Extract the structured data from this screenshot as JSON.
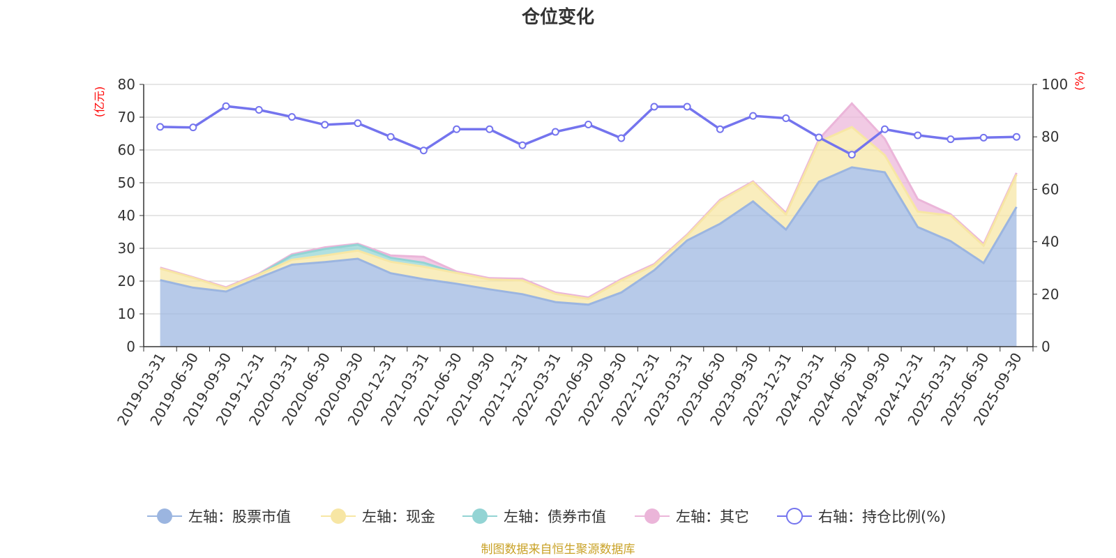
{
  "chart_data": {
    "type": "area",
    "title": "仓位变化",
    "left_unit": "(亿元)",
    "right_unit": "(%)",
    "source": "制图数据来自恒生聚源数据库",
    "categories": [
      "2019-03-31",
      "2019-06-30",
      "2019-09-30",
      "2019-12-31",
      "2020-03-31",
      "2020-06-30",
      "2020-09-30",
      "2020-12-31",
      "2021-03-31",
      "2021-06-30",
      "2021-09-30",
      "2021-12-31",
      "2022-03-31",
      "2022-06-30",
      "2022-09-30",
      "2022-12-31",
      "2023-03-31",
      "2023-06-30",
      "2023-09-30",
      "2023-12-31",
      "2024-03-31",
      "2024-06-30",
      "2024-09-30",
      "2024-12-31",
      "2025-03-31",
      "2025-06-30",
      "2025-09-30"
    ],
    "y_left_ticks": [
      "0",
      "10",
      "20",
      "30",
      "40",
      "50",
      "60",
      "70",
      "80"
    ],
    "y_right_ticks": [
      "0",
      "20",
      "40",
      "60",
      "80",
      "100"
    ],
    "ylim_left": [
      0,
      80
    ],
    "ylim_right": [
      0,
      100
    ],
    "grid": true,
    "legend_position": "bottom",
    "series": [
      {
        "name": "左轴：股票市值",
        "axis": "left",
        "color": "#9bb5e0",
        "stack": true,
        "values": [
          20.3,
          18.0,
          16.8,
          21.0,
          25.0,
          25.8,
          26.8,
          22.4,
          20.6,
          19.2,
          17.5,
          16.0,
          13.6,
          12.8,
          16.5,
          23.3,
          32.4,
          37.5,
          44.3,
          35.7,
          50.3,
          54.7,
          53.2,
          36.5,
          32.2,
          25.5,
          42.6
        ]
      },
      {
        "name": "左轴：现金",
        "axis": "left",
        "color": "#f7e6a4",
        "stack": true,
        "values": [
          3.5,
          3.0,
          1.0,
          1.0,
          1.5,
          2.0,
          2.5,
          3.5,
          3.8,
          3.3,
          3.0,
          4.2,
          2.5,
          1.8,
          3.7,
          1.5,
          1.5,
          6.9,
          5.8,
          4.6,
          12.2,
          12.3,
          5.2,
          4.7,
          7.8,
          5.3,
          9.9
        ]
      },
      {
        "name": "左轴：债券市值",
        "axis": "left",
        "color": "#93d4d4",
        "stack": true,
        "values": [
          0,
          0,
          0,
          0,
          1.3,
          2.0,
          1.8,
          1.2,
          1.2,
          0,
          0,
          0,
          0,
          0,
          0,
          0,
          0,
          0,
          0,
          0,
          0,
          0,
          0,
          0,
          0,
          0,
          0
        ]
      },
      {
        "name": "左轴：其它",
        "axis": "left",
        "color": "#ebb5d9",
        "stack": true,
        "values": [
          0.3,
          0.2,
          0.3,
          0.3,
          0.4,
          0.5,
          0.3,
          0.7,
          1.8,
          0.4,
          0.4,
          0.5,
          0.4,
          0.4,
          0.4,
          0.4,
          0.3,
          0.4,
          0.3,
          0.5,
          0.8,
          7.2,
          5.0,
          3.8,
          0.4,
          0.5,
          0.5
        ]
      },
      {
        "name": "右轴：持仓比例(%)",
        "axis": "right",
        "color": "#7474ee",
        "type": "line",
        "values": [
          83.8,
          83.6,
          91.7,
          90.3,
          87.6,
          84.6,
          85.2,
          80.0,
          74.8,
          82.9,
          82.9,
          76.8,
          81.9,
          84.7,
          79.5,
          91.5,
          91.5,
          82.9,
          88.0,
          87.1,
          79.8,
          73.2,
          82.9,
          80.6,
          79.1,
          79.7,
          80.0
        ]
      }
    ]
  }
}
